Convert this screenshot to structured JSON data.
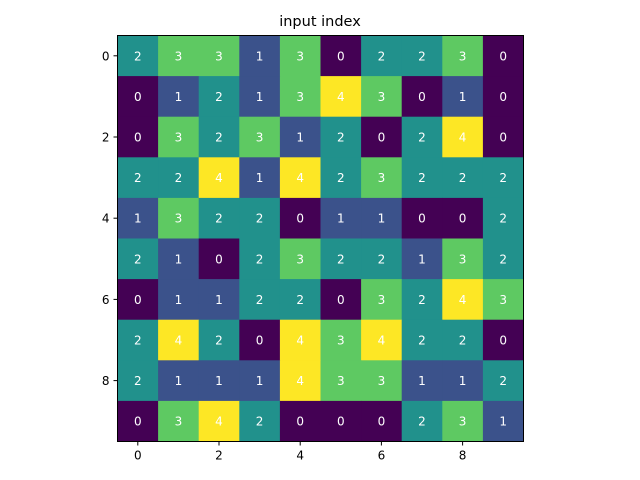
{
  "chart_data": {
    "type": "heatmap",
    "title": "input index",
    "xlabel": "",
    "ylabel": "",
    "x_ticks": [
      "0",
      "2",
      "4",
      "6",
      "8"
    ],
    "y_ticks": [
      "0",
      "2",
      "4",
      "6",
      "8"
    ],
    "grid": false,
    "colormap": "viridis",
    "value_range": [
      0,
      4
    ],
    "colors": {
      "0": "#440154",
      "1": "#3b528b",
      "2": "#21918c",
      "3": "#5ec962",
      "4": "#fde725"
    },
    "label_colors": {
      "dark_cell": "#ffffff",
      "bright_cell": "#ffffff"
    },
    "rows": [
      [
        2,
        3,
        3,
        1,
        3,
        0,
        2,
        2,
        3,
        0
      ],
      [
        0,
        1,
        2,
        1,
        3,
        4,
        3,
        0,
        1,
        0
      ],
      [
        0,
        3,
        2,
        3,
        1,
        2,
        0,
        2,
        4,
        0
      ],
      [
        2,
        2,
        4,
        1,
        4,
        2,
        3,
        2,
        2,
        2
      ],
      [
        1,
        3,
        2,
        2,
        0,
        1,
        1,
        0,
        0,
        2
      ],
      [
        2,
        1,
        0,
        2,
        3,
        2,
        2,
        1,
        3,
        2
      ],
      [
        0,
        1,
        1,
        2,
        2,
        0,
        3,
        2,
        4,
        3
      ],
      [
        2,
        4,
        2,
        0,
        4,
        3,
        4,
        2,
        2,
        0
      ],
      [
        2,
        1,
        1,
        1,
        4,
        3,
        3,
        1,
        1,
        2
      ],
      [
        0,
        3,
        4,
        2,
        0,
        0,
        0,
        2,
        3,
        1
      ]
    ]
  }
}
